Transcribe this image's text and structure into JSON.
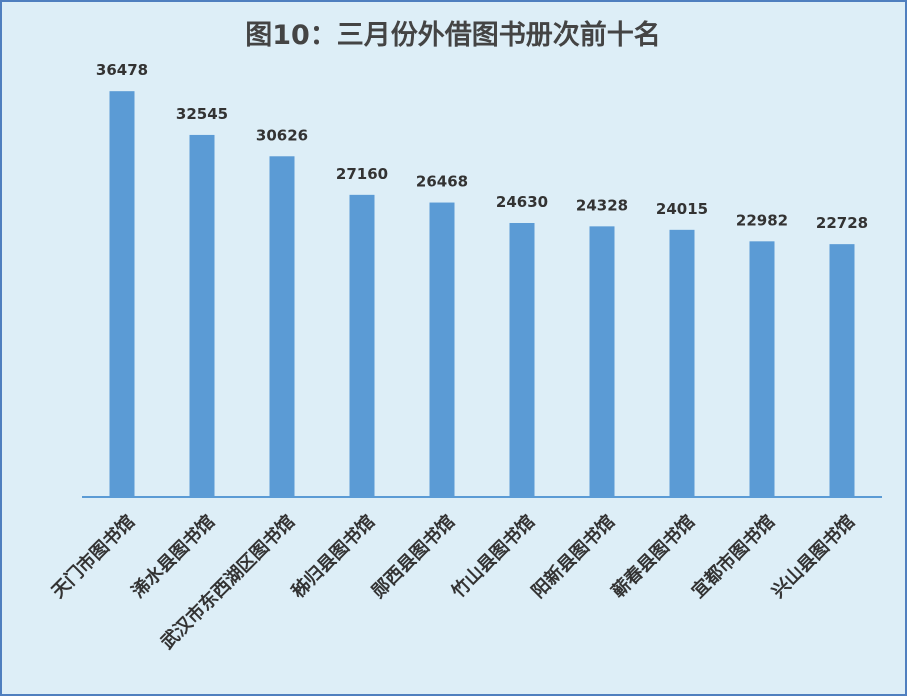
{
  "chart_data": {
    "type": "bar",
    "title": "图10：三月份外借图书册次前十名",
    "xlabel": "",
    "ylabel": "",
    "ylim": [
      0,
      40000
    ],
    "grid": false,
    "legend": "none",
    "categories": [
      "天门市图书馆",
      "浠水县图书馆",
      "武汉市东西湖区图书馆",
      "秭归县图书馆",
      "郧西县图书馆",
      "竹山县图书馆",
      "阳新县图书馆",
      "蕲春县图书馆",
      "宜都市图书馆",
      "兴山县图书馆"
    ],
    "values": [
      36478,
      32545,
      30626,
      27160,
      26468,
      24630,
      24328,
      24015,
      22982,
      22728
    ],
    "colors": {
      "bar": "#5b9bd5",
      "axis": "#5b9bd5",
      "background": "#ddeef7",
      "border": "#4f7fbf"
    }
  }
}
